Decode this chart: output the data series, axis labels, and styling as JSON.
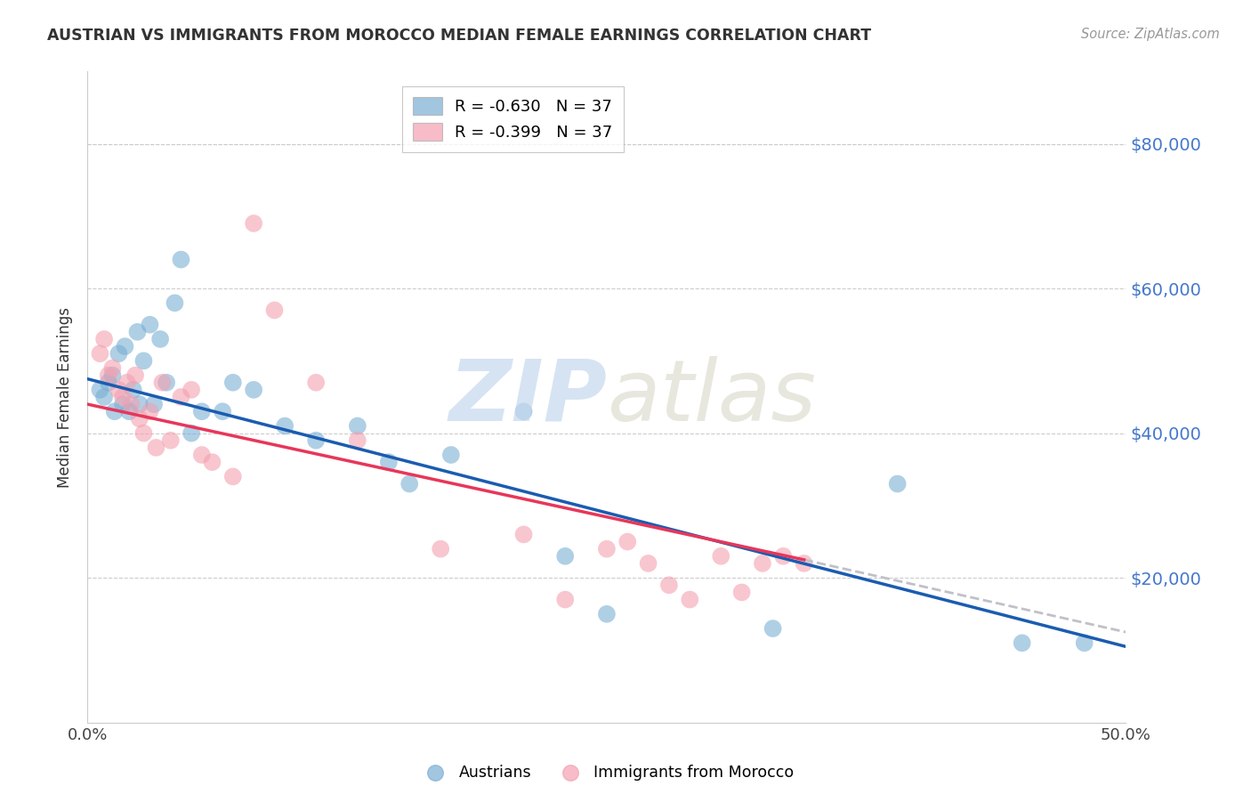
{
  "title": "AUSTRIAN VS IMMIGRANTS FROM MOROCCO MEDIAN FEMALE EARNINGS CORRELATION CHART",
  "source": "Source: ZipAtlas.com",
  "ylabel": "Median Female Earnings",
  "xlim": [
    0.0,
    0.5
  ],
  "ylim": [
    0,
    90000
  ],
  "yticks": [
    0,
    20000,
    40000,
    60000,
    80000
  ],
  "ytick_labels": [
    "",
    "$20,000",
    "$40,000",
    "$60,000",
    "$80,000"
  ],
  "xticks": [
    0.0,
    0.1,
    0.2,
    0.3,
    0.4,
    0.5
  ],
  "xtick_labels": [
    "0.0%",
    "",
    "",
    "",
    "",
    "50.0%"
  ],
  "blue_R": -0.63,
  "blue_N": 37,
  "pink_R": -0.399,
  "pink_N": 37,
  "blue_color": "#7BAFD4",
  "pink_color": "#F4A0B0",
  "blue_line_color": "#1A5CB0",
  "pink_line_color": "#E8365A",
  "dashed_line_color": "#C0C0C8",
  "watermark_zip_color": "#C5D8EE",
  "watermark_atlas_color": "#D8D8C8",
  "background_color": "#FFFFFF",
  "grid_color": "#CCCCCC",
  "right_label_color": "#4477CC",
  "title_color": "#333333",
  "source_color": "#999999",
  "austrians_x": [
    0.006,
    0.008,
    0.01,
    0.012,
    0.013,
    0.015,
    0.017,
    0.018,
    0.02,
    0.022,
    0.024,
    0.025,
    0.027,
    0.03,
    0.032,
    0.035,
    0.038,
    0.042,
    0.045,
    0.05,
    0.055,
    0.065,
    0.07,
    0.08,
    0.095,
    0.11,
    0.13,
    0.145,
    0.155,
    0.175,
    0.21,
    0.23,
    0.25,
    0.33,
    0.39,
    0.45,
    0.48
  ],
  "austrians_y": [
    46000,
    45000,
    47000,
    48000,
    43000,
    51000,
    44000,
    52000,
    43000,
    46000,
    54000,
    44000,
    50000,
    55000,
    44000,
    53000,
    47000,
    58000,
    64000,
    40000,
    43000,
    43000,
    47000,
    46000,
    41000,
    39000,
    41000,
    36000,
    33000,
    37000,
    43000,
    23000,
    15000,
    13000,
    33000,
    11000,
    11000
  ],
  "morocco_x": [
    0.006,
    0.008,
    0.01,
    0.012,
    0.015,
    0.017,
    0.019,
    0.021,
    0.023,
    0.025,
    0.027,
    0.03,
    0.033,
    0.036,
    0.04,
    0.045,
    0.05,
    0.055,
    0.06,
    0.07,
    0.08,
    0.09,
    0.11,
    0.13,
    0.17,
    0.21,
    0.23,
    0.25,
    0.26,
    0.27,
    0.28,
    0.29,
    0.305,
    0.315,
    0.325,
    0.335,
    0.345
  ],
  "morocco_y": [
    51000,
    53000,
    48000,
    49000,
    46000,
    45000,
    47000,
    44000,
    48000,
    42000,
    40000,
    43000,
    38000,
    47000,
    39000,
    45000,
    46000,
    37000,
    36000,
    34000,
    69000,
    57000,
    47000,
    39000,
    24000,
    26000,
    17000,
    24000,
    25000,
    22000,
    19000,
    17000,
    23000,
    18000,
    22000,
    23000,
    22000
  ],
  "blue_line_x0": 0.0,
  "blue_line_y0": 47500,
  "blue_line_x1": 0.5,
  "blue_line_y1": 10500,
  "pink_line_x0": 0.0,
  "pink_line_y0": 44000,
  "pink_line_x1": 0.345,
  "pink_line_y1": 22500,
  "dashed_line_x0": 0.345,
  "dashed_line_y0": 22500,
  "dashed_line_x1": 0.5,
  "dashed_line_y1": 12500
}
